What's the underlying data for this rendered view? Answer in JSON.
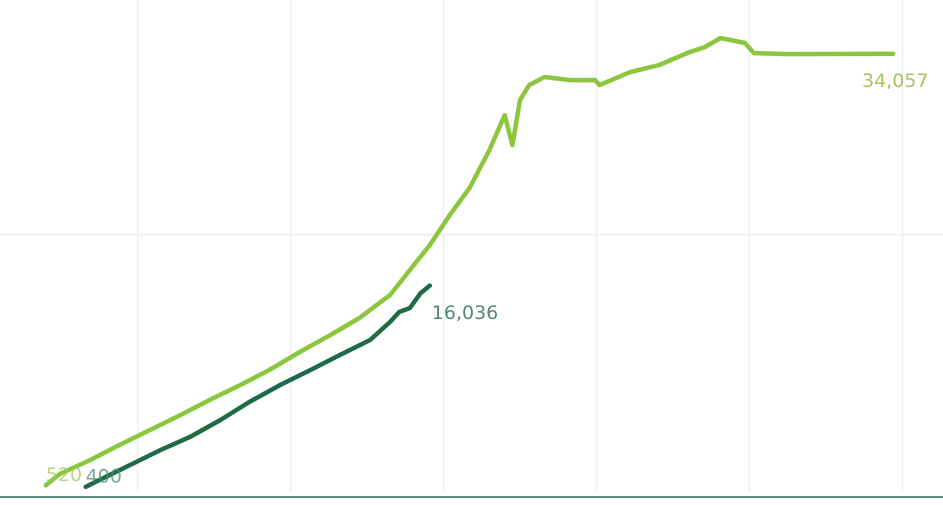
{
  "chart_data": {
    "type": "line",
    "xlim": [
      1,
      62
    ],
    "xticks": [
      10,
      20,
      30,
      40,
      50,
      60
    ],
    "ylim": [
      0,
      38000
    ],
    "yticks": [
      0,
      20000
    ],
    "grid": true,
    "series": [
      {
        "color": "#8cc63f",
        "label_color": "#a3c760",
        "x": [
          4,
          4.9,
          6.9,
          8.8,
          10.8,
          12.8,
          14.7,
          16.7,
          18.6,
          20.6,
          22.6,
          24.5,
          26.5,
          27.8,
          29.1,
          30.4,
          31.7,
          33,
          34,
          34.5,
          35,
          35.6,
          36.6,
          38.3,
          39.9,
          40.2,
          42.2,
          44.1,
          46.1,
          47.1,
          48.1,
          49.7,
          50.3,
          52.6,
          59.4
        ],
        "values": [
          520,
          1400,
          2490,
          3650,
          4820,
          5980,
          7150,
          8310,
          9480,
          10880,
          12200,
          13520,
          15300,
          17250,
          19190,
          21520,
          23620,
          26570,
          29290,
          26960,
          30460,
          31620,
          32250,
          32010,
          32010,
          31620,
          32630,
          33180,
          34190,
          34580,
          35280,
          34890,
          34110,
          34030,
          34057
        ],
        "value_labels": [
          "520",
          null,
          null,
          null,
          null,
          null,
          null,
          null,
          null,
          null,
          null,
          null,
          null,
          null,
          null,
          null,
          null,
          null,
          null,
          null,
          null,
          null,
          null,
          null,
          null,
          null,
          null,
          null,
          null,
          null,
          null,
          null,
          null,
          null,
          "34,057"
        ]
      },
      {
        "color": "#1e6b45",
        "label_color": "#4f8a70",
        "x": [
          6.6,
          7.5,
          9.5,
          11.5,
          13.4,
          15.4,
          17.3,
          19.3,
          21.3,
          23.2,
          25.2,
          26.5,
          27.1,
          27.8,
          28.5,
          29.1
        ],
        "values": [
          400,
          930,
          2100,
          3260,
          4270,
          5590,
          6990,
          8310,
          9480,
          10640,
          11810,
          13210,
          13990,
          14300,
          15460,
          16036
        ],
        "value_labels": [
          "400",
          null,
          null,
          null,
          null,
          null,
          null,
          null,
          null,
          null,
          null,
          null,
          null,
          null,
          null,
          "16,036"
        ]
      }
    ]
  }
}
